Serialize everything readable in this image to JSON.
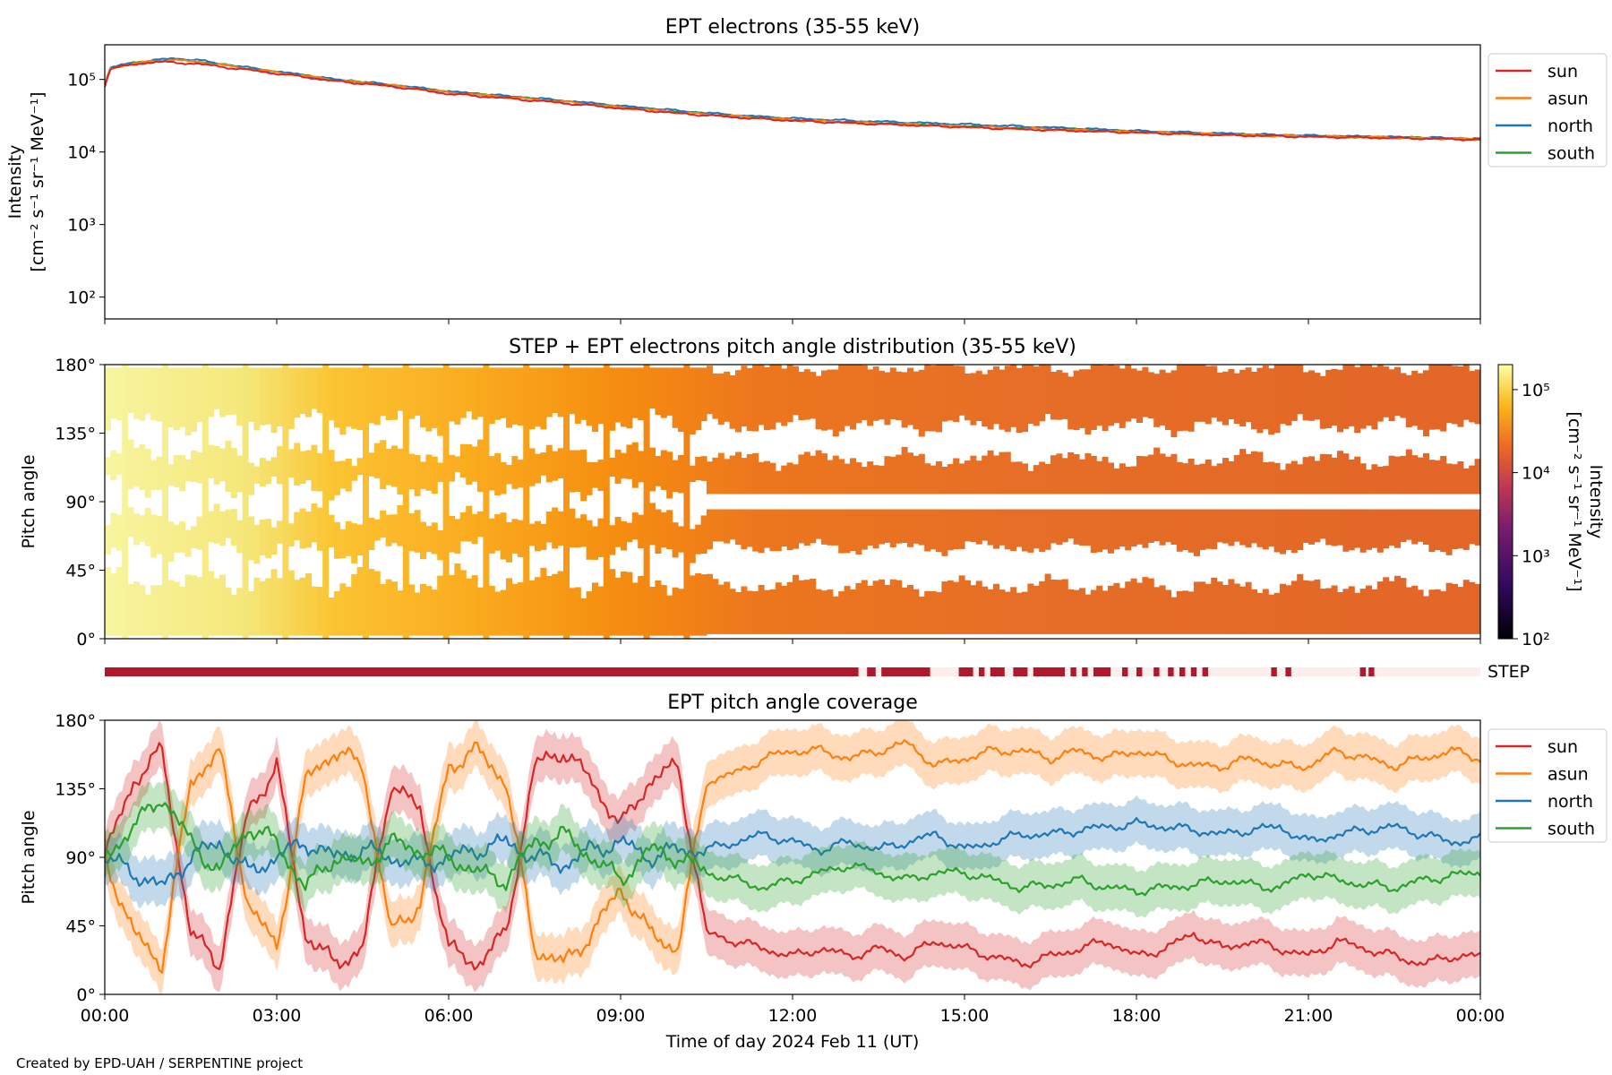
{
  "figure": {
    "credit": "Created by EPD-UAH / SERPENTINE project",
    "xlabel": "Time of day 2024 Feb 11 (UT)",
    "xticks": [
      "00:00",
      "03:00",
      "06:00",
      "09:00",
      "12:00",
      "15:00",
      "18:00",
      "21:00",
      "00:00"
    ]
  },
  "colors": {
    "sun": "#d62728",
    "asun": "#ff7f0e",
    "north": "#1f77b4",
    "south": "#2ca02c",
    "step_on": "#b2182b",
    "step_off": "#fdeeee"
  },
  "chart_data": [
    {
      "type": "line",
      "title": "EPT electrons (35-55 keV)",
      "ylabel_line1": "Intensity",
      "ylabel_line2": "[cm⁻² s⁻¹ sr⁻¹ MeV⁻¹]",
      "yscale": "log",
      "ylim": [
        50,
        300000
      ],
      "yticks": [
        {
          "label": "10²",
          "value": 100
        },
        {
          "label": "10³",
          "value": 1000
        },
        {
          "label": "10⁴",
          "value": 10000
        },
        {
          "label": "10⁵",
          "value": 100000
        }
      ],
      "xlim_hours": [
        0,
        24
      ],
      "legend": "outside-right",
      "x_hours": [
        0,
        0.1,
        0.5,
        0.9,
        1.2,
        1.6,
        2.0,
        2.5,
        3.0,
        4.0,
        5.0,
        6.0,
        7.0,
        8.0,
        9.0,
        10.0,
        11.0,
        12.0,
        13.0,
        14.0,
        15.0,
        16.0,
        17.0,
        18.0,
        19.0,
        20.0,
        21.0,
        22.0,
        23.0,
        24.0
      ],
      "series": [
        {
          "name": "sun",
          "values": [
            80000,
            140000,
            160000,
            175000,
            170000,
            165000,
            150000,
            135000,
            120000,
            95000,
            80000,
            63000,
            55000,
            47000,
            40000,
            34000,
            30000,
            27000,
            25000,
            23500,
            22000,
            20500,
            19500,
            18500,
            17500,
            16800,
            16200,
            15800,
            15300,
            14800
          ]
        },
        {
          "name": "asun",
          "values": [
            82000,
            142000,
            165000,
            180000,
            185000,
            175000,
            160000,
            140000,
            125000,
            98000,
            82000,
            66000,
            57000,
            49000,
            41000,
            35000,
            31000,
            27500,
            25500,
            24000,
            22500,
            21000,
            19800,
            18800,
            17800,
            17000,
            16400,
            16000,
            15500,
            15000
          ]
        },
        {
          "name": "north",
          "values": [
            82000,
            145000,
            170000,
            185000,
            195000,
            185000,
            165000,
            145000,
            128000,
            100000,
            84000,
            68000,
            59000,
            51000,
            43000,
            37000,
            32000,
            29000,
            27000,
            25500,
            24000,
            22500,
            21000,
            19500,
            18500,
            17500,
            16800,
            16300,
            15800,
            15200
          ]
        },
        {
          "name": "south",
          "values": [
            81000,
            143000,
            168000,
            180000,
            188000,
            178000,
            162000,
            142000,
            126000,
            99000,
            83000,
            67000,
            58000,
            50000,
            42000,
            36000,
            31500,
            28000,
            26000,
            24500,
            23000,
            21500,
            20500,
            19000,
            18000,
            17200,
            16600,
            16100,
            15600,
            15000
          ]
        }
      ]
    },
    {
      "type": "heatmap",
      "title": "STEP + EPT electrons pitch angle distribution (35-55 keV)",
      "ylabel": "Pitch angle",
      "yticks": [
        "0°",
        "45°",
        "90°",
        "135°",
        "180°"
      ],
      "ylim": [
        0,
        180
      ],
      "colorbar": {
        "label_line1": "Intensity",
        "label_line2": "[cm⁻² s⁻¹ sr⁻¹ MeV⁻¹]",
        "scale": "log",
        "range": [
          100,
          200000
        ],
        "ticks": [
          {
            "label": "10²",
            "value": 100
          },
          {
            "label": "10³",
            "value": 1000
          },
          {
            "label": "10⁴",
            "value": 10000
          },
          {
            "label": "10⁵",
            "value": 100000
          }
        ],
        "colormap": "inferno"
      }
    },
    {
      "type": "bar",
      "label": "STEP",
      "on_intervals_hours": [
        [
          0,
          13.15
        ],
        [
          13.3,
          13.45
        ],
        [
          13.55,
          14.4
        ],
        [
          14.9,
          15.15
        ],
        [
          15.25,
          15.35
        ],
        [
          15.45,
          15.7
        ],
        [
          15.85,
          16.1
        ],
        [
          16.2,
          16.75
        ],
        [
          16.85,
          16.95
        ],
        [
          17.05,
          17.15
        ],
        [
          17.25,
          17.55
        ],
        [
          17.75,
          17.85
        ],
        [
          18.0,
          18.1
        ],
        [
          18.3,
          18.4
        ],
        [
          18.55,
          18.65
        ],
        [
          18.75,
          18.85
        ],
        [
          18.95,
          19.05
        ],
        [
          19.15,
          19.25
        ],
        [
          20.35,
          20.45
        ],
        [
          20.6,
          20.7
        ],
        [
          21.9,
          22.0
        ],
        [
          22.05,
          22.15
        ]
      ]
    },
    {
      "type": "line",
      "title": "EPT pitch angle coverage",
      "ylabel": "Pitch angle",
      "yticks": [
        "0°",
        "45°",
        "90°",
        "135°",
        "180°"
      ],
      "ylim": [
        0,
        180
      ],
      "legend": "outside-right",
      "x_hours": [
        0,
        0.5,
        1.0,
        1.5,
        2.0,
        2.5,
        3.0,
        3.5,
        4.0,
        4.5,
        5.0,
        5.5,
        6.0,
        6.5,
        7.0,
        7.5,
        8.0,
        8.5,
        9.0,
        9.5,
        10.0,
        10.5,
        11.0,
        11.5,
        12.0,
        12.5,
        13.0,
        13.5,
        14.0,
        14.5,
        15.0,
        15.5,
        16.0,
        16.5,
        17.0,
        17.5,
        18.0,
        18.5,
        19.0,
        19.5,
        20.0,
        20.5,
        21.0,
        21.5,
        22.0,
        22.5,
        23.0,
        23.5,
        24.0
      ],
      "band_halfwidth_deg": 15,
      "series": [
        {
          "name": "sun",
          "values": [
            90,
            140,
            160,
            40,
            20,
            120,
            150,
            40,
            20,
            30,
            140,
            120,
            30,
            20,
            40,
            150,
            160,
            140,
            110,
            140,
            150,
            40,
            35,
            30,
            25,
            30,
            25,
            30,
            25,
            35,
            30,
            25,
            20,
            25,
            30,
            35,
            25,
            30,
            40,
            30,
            35,
            30,
            25,
            35,
            30,
            25,
            20,
            25,
            25
          ]
        },
        {
          "name": "asun",
          "values": [
            90,
            40,
            20,
            140,
            160,
            60,
            30,
            140,
            160,
            150,
            40,
            60,
            150,
            160,
            140,
            30,
            20,
            40,
            70,
            40,
            30,
            140,
            145,
            155,
            160,
            160,
            155,
            160,
            165,
            150,
            155,
            160,
            160,
            155,
            160,
            155,
            160,
            155,
            150,
            150,
            155,
            150,
            150,
            160,
            155,
            150,
            155,
            160,
            155
          ]
        },
        {
          "name": "north",
          "values": [
            90,
            80,
            70,
            90,
            100,
            80,
            90,
            100,
            90,
            95,
            90,
            85,
            90,
            95,
            100,
            90,
            85,
            95,
            100,
            90,
            95,
            95,
            100,
            105,
            100,
            95,
            100,
            95,
            100,
            105,
            95,
            100,
            105,
            105,
            108,
            110,
            112,
            110,
            108,
            105,
            108,
            110,
            100,
            105,
            108,
            110,
            105,
            100,
            102
          ]
        },
        {
          "name": "south",
          "values": [
            90,
            110,
            130,
            100,
            80,
            110,
            100,
            70,
            90,
            85,
            100,
            95,
            90,
            80,
            75,
            100,
            105,
            90,
            75,
            95,
            90,
            80,
            75,
            70,
            75,
            80,
            85,
            80,
            75,
            80,
            80,
            75,
            70,
            72,
            75,
            70,
            68,
            70,
            72,
            75,
            72,
            70,
            80,
            75,
            72,
            70,
            75,
            78,
            80
          ]
        }
      ]
    }
  ]
}
